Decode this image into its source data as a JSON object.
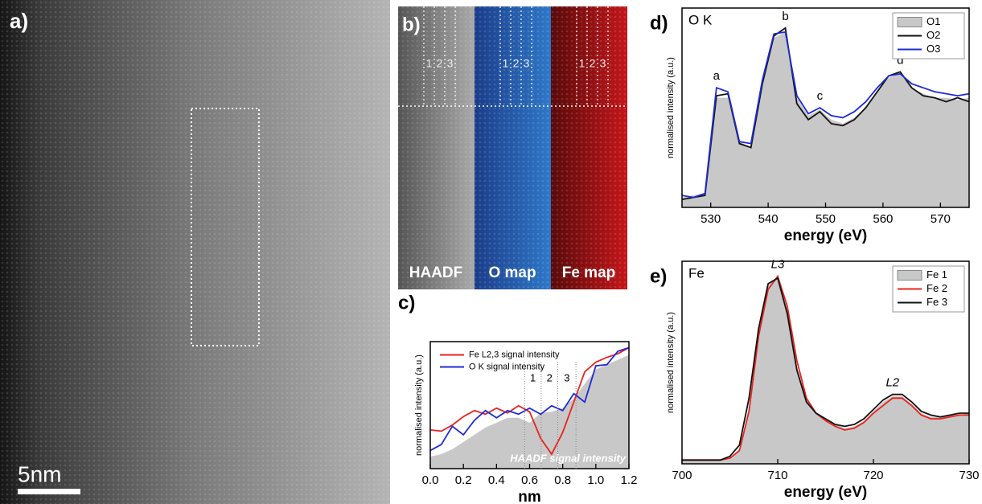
{
  "panel_a": {
    "label": "a)",
    "scale_bar": "5nm"
  },
  "panel_b": {
    "label": "b)",
    "maps": [
      "HAADF",
      "O map",
      "Fe map"
    ],
    "columns": [
      "1",
      "2",
      "3"
    ]
  },
  "chart_data": [
    {
      "type": "line",
      "panel_label": "c)",
      "x_label": "nm",
      "y_label": "normalised intensity (a.u.)",
      "x": [
        0,
        0.067,
        0.133,
        0.2,
        0.267,
        0.333,
        0.4,
        0.467,
        0.533,
        0.6,
        0.667,
        0.733,
        0.8,
        0.867,
        0.933,
        1,
        1.067,
        1.133,
        1.2
      ],
      "xlim": [
        0,
        1.2
      ],
      "xticks": [
        {
          "value": 0,
          "label": "0.0"
        },
        0.2,
        0.4,
        0.6,
        0.8,
        {
          "value": 1,
          "label": "1.0"
        },
        1.2
      ],
      "ylim": [
        0,
        1.05
      ],
      "legend": "top-left",
      "series": [
        {
          "name": "HAADF signal intensity",
          "color": "#c8c8c8",
          "fill": true,
          "label_inside": true,
          "values": [
            0.1,
            0.12,
            0.16,
            0.22,
            0.28,
            0.34,
            0.38,
            0.42,
            0.42,
            0.38,
            0.46,
            0.47,
            0.5,
            0.58,
            0.7,
            0.82,
            0.86,
            0.9,
            0.94
          ]
        },
        {
          "name": "Fe L2,3 signal intensity",
          "color": "#e8231f",
          "values": [
            0.32,
            0.31,
            0.36,
            0.43,
            0.48,
            0.45,
            0.5,
            0.46,
            0.52,
            0.47,
            0.25,
            0.12,
            0.3,
            0.55,
            0.8,
            0.88,
            0.92,
            0.95,
            1.0
          ]
        },
        {
          "name": "O K signal intensity",
          "color": "#1f2bd6",
          "values": [
            0.15,
            0.2,
            0.35,
            0.28,
            0.4,
            0.48,
            0.42,
            0.48,
            0.45,
            0.5,
            0.45,
            0.52,
            0.48,
            0.62,
            0.55,
            0.85,
            0.86,
            0.97,
            1.0
          ]
        }
      ],
      "region_lines": [
        0.57,
        0.67,
        0.77,
        0.88
      ],
      "region_labels": [
        "1",
        "2",
        "3"
      ]
    },
    {
      "type": "line",
      "panel_label": "d)",
      "title": "O K",
      "x_label": "energy (eV)",
      "y_label": "normalised intensity (a.u.)",
      "x": [
        525,
        527,
        529,
        531,
        533,
        535,
        537,
        539,
        541,
        543,
        545,
        547,
        549,
        551,
        553,
        555,
        557,
        559,
        561,
        563,
        565,
        567,
        569,
        571,
        573,
        575
      ],
      "xlim": [
        525,
        575
      ],
      "xticks": [
        530,
        540,
        550,
        560,
        570
      ],
      "ylim": [
        0,
        1
      ],
      "legend": "top-right",
      "series": [
        {
          "name": "O1",
          "color": "#c8c8c8",
          "fill": true,
          "values": [
            0.05,
            0.06,
            0.07,
            0.55,
            0.55,
            0.33,
            0.3,
            0.6,
            0.85,
            0.88,
            0.55,
            0.46,
            0.49,
            0.44,
            0.42,
            0.45,
            0.5,
            0.58,
            0.65,
            0.67,
            0.6,
            0.57,
            0.55,
            0.55,
            0.54,
            0.55
          ]
        },
        {
          "name": "O2",
          "color": "#111111",
          "values": [
            0.04,
            0.05,
            0.06,
            0.56,
            0.57,
            0.32,
            0.3,
            0.62,
            0.86,
            0.9,
            0.52,
            0.44,
            0.48,
            0.42,
            0.41,
            0.44,
            0.5,
            0.58,
            0.66,
            0.68,
            0.6,
            0.56,
            0.55,
            0.53,
            0.55,
            0.53
          ]
        },
        {
          "name": "O3",
          "color": "#1f2bd6",
          "values": [
            0.06,
            0.05,
            0.07,
            0.6,
            0.58,
            0.33,
            0.32,
            0.64,
            0.87,
            0.88,
            0.56,
            0.47,
            0.5,
            0.46,
            0.45,
            0.48,
            0.53,
            0.6,
            0.66,
            0.67,
            0.62,
            0.6,
            0.58,
            0.57,
            0.56,
            0.57
          ]
        }
      ],
      "annotations": [
        {
          "text": "a",
          "x": 531
        },
        {
          "text": "b",
          "x": 543
        },
        {
          "text": "c",
          "x": 549
        },
        {
          "text": "d",
          "x": 563
        }
      ]
    },
    {
      "type": "line",
      "panel_label": "e)",
      "title": "Fe",
      "x_label": "energy (eV)",
      "y_label": "normalised intensity (a.u.)",
      "x": [
        700,
        701,
        702,
        703,
        704,
        705,
        706,
        707,
        708,
        709,
        710,
        711,
        712,
        713,
        714,
        715,
        716,
        717,
        718,
        719,
        720,
        721,
        722,
        723,
        724,
        725,
        726,
        727,
        728,
        729,
        730
      ],
      "xlim": [
        700,
        730
      ],
      "xticks": [
        700,
        710,
        720,
        730
      ],
      "ylim": [
        0,
        1.08
      ],
      "legend": "top-right",
      "series": [
        {
          "name": "Fe 1",
          "color": "#c8c8c8",
          "fill": true,
          "values": [
            0.02,
            0.02,
            0.02,
            0.02,
            0.02,
            0.03,
            0.08,
            0.3,
            0.7,
            0.95,
            1.0,
            0.82,
            0.52,
            0.34,
            0.27,
            0.24,
            0.21,
            0.19,
            0.2,
            0.23,
            0.28,
            0.33,
            0.36,
            0.36,
            0.32,
            0.27,
            0.25,
            0.25,
            0.26,
            0.26,
            0.27
          ]
        },
        {
          "name": "Fe 2",
          "color": "#e8231f",
          "values": [
            0.02,
            0.02,
            0.02,
            0.02,
            0.02,
            0.03,
            0.07,
            0.28,
            0.68,
            0.93,
            1.0,
            0.84,
            0.55,
            0.35,
            0.27,
            0.23,
            0.2,
            0.18,
            0.19,
            0.22,
            0.27,
            0.31,
            0.35,
            0.35,
            0.31,
            0.26,
            0.24,
            0.24,
            0.25,
            0.26,
            0.26
          ]
        },
        {
          "name": "Fe 3",
          "color": "#111111",
          "values": [
            0.02,
            0.02,
            0.02,
            0.02,
            0.02,
            0.04,
            0.1,
            0.35,
            0.72,
            0.96,
            0.99,
            0.8,
            0.5,
            0.33,
            0.27,
            0.24,
            0.21,
            0.2,
            0.21,
            0.24,
            0.29,
            0.34,
            0.37,
            0.37,
            0.33,
            0.28,
            0.26,
            0.25,
            0.26,
            0.27,
            0.27
          ]
        }
      ],
      "annotations": [
        {
          "text": "L3",
          "x": 710
        },
        {
          "text": "L2",
          "x": 722
        }
      ]
    }
  ]
}
